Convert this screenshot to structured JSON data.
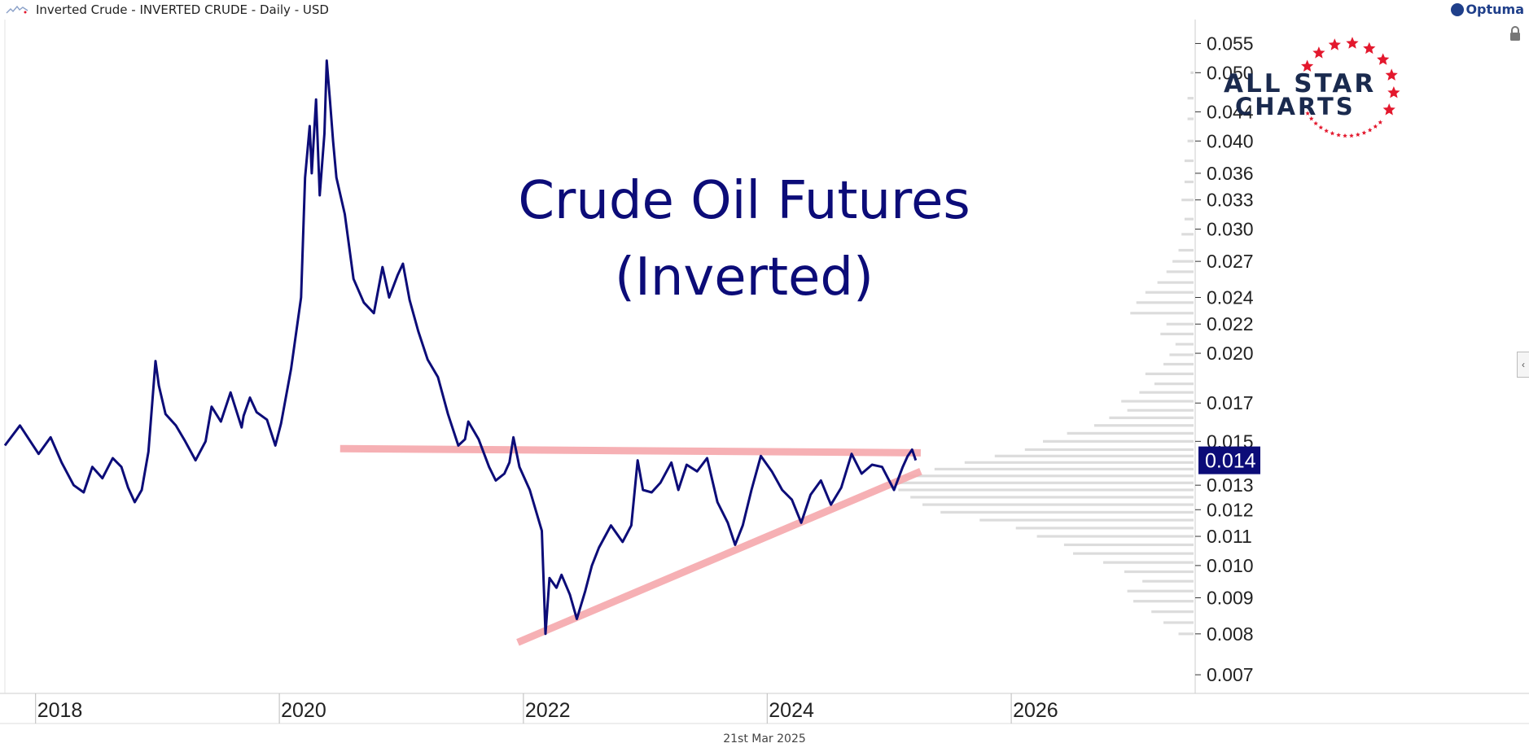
{
  "header": {
    "title": "Inverted Crude - INVERTED CRUDE - Daily - USD",
    "brand": "Optuma"
  },
  "logo": {
    "line1": "ALL STAR",
    "line2": "CHARTS"
  },
  "footer": {
    "date": "21st Mar 2025"
  },
  "colors": {
    "price_line": "#0c0c78",
    "trendline": "#f6a8ac",
    "volume_profile": "#dcdcdc",
    "last_price_badge": "#0c0c78",
    "title_text": "#0c0c78",
    "logo_navy": "#1a2a4e",
    "logo_red": "#e3182d"
  },
  "chart_data": {
    "type": "line",
    "title": "Crude Oil Futures",
    "subtitle": "(Inverted)",
    "y_scale": "log",
    "ylim": [
      0.0068,
      0.057
    ],
    "x_range": [
      "2017-10-01",
      "2027-07-01"
    ],
    "x_tick_labels": [
      "2018",
      "2020",
      "2022",
      "2024",
      "2026"
    ],
    "x_ticks": [
      "2018-01-01",
      "2020-01-01",
      "2022-01-01",
      "2024-01-01",
      "2026-01-01"
    ],
    "y_tick_labels": [
      "0.055",
      "0.050",
      "0.044",
      "0.040",
      "0.036",
      "0.033",
      "0.030",
      "0.027",
      "0.024",
      "0.022",
      "0.020",
      "0.017",
      "0.015",
      "0.013",
      "0.012",
      "0.011",
      "0.010",
      "0.009",
      "0.008",
      "0.007"
    ],
    "y_ticks": [
      0.055,
      0.05,
      0.044,
      0.04,
      0.036,
      0.033,
      0.03,
      0.027,
      0.024,
      0.022,
      0.02,
      0.017,
      0.015,
      0.013,
      0.012,
      0.011,
      0.01,
      0.009,
      0.008,
      0.007
    ],
    "last_value_label": "0.014",
    "last_value": 0.0141,
    "series": [
      {
        "values": [
          [
            "2017-10-01",
            0.0148
          ],
          [
            "2017-11-15",
            0.0158
          ],
          [
            "2018-01-10",
            0.0144
          ],
          [
            "2018-02-15",
            0.0152
          ],
          [
            "2018-03-20",
            0.014
          ],
          [
            "2018-04-25",
            0.013
          ],
          [
            "2018-05-25",
            0.0127
          ],
          [
            "2018-06-20",
            0.0138
          ],
          [
            "2018-07-20",
            0.0133
          ],
          [
            "2018-08-20",
            0.0142
          ],
          [
            "2018-09-15",
            0.0138
          ],
          [
            "2018-10-05",
            0.0129
          ],
          [
            "2018-10-25",
            0.0123
          ],
          [
            "2018-11-15",
            0.0128
          ],
          [
            "2018-12-05",
            0.0145
          ],
          [
            "2018-12-26",
            0.0195
          ],
          [
            "2019-01-05",
            0.018
          ],
          [
            "2019-01-25",
            0.0164
          ],
          [
            "2019-02-25",
            0.0158
          ],
          [
            "2019-03-25",
            0.015
          ],
          [
            "2019-04-25",
            0.0141
          ],
          [
            "2019-05-25",
            0.015
          ],
          [
            "2019-06-12",
            0.0168
          ],
          [
            "2019-07-10",
            0.016
          ],
          [
            "2019-08-08",
            0.0176
          ],
          [
            "2019-09-10",
            0.0157
          ],
          [
            "2019-09-16",
            0.0163
          ],
          [
            "2019-10-05",
            0.0173
          ],
          [
            "2019-10-25",
            0.0165
          ],
          [
            "2019-11-25",
            0.0161
          ],
          [
            "2019-12-20",
            0.0148
          ],
          [
            "2020-01-06",
            0.0159
          ],
          [
            "2020-02-05",
            0.019
          ],
          [
            "2020-03-06",
            0.024
          ],
          [
            "2020-03-18",
            0.0355
          ],
          [
            "2020-04-01",
            0.042
          ],
          [
            "2020-04-07",
            0.036
          ],
          [
            "2020-04-20",
            0.0458
          ],
          [
            "2020-05-01",
            0.0335
          ],
          [
            "2020-05-15",
            0.041
          ],
          [
            "2020-05-22",
            0.052
          ],
          [
            "2020-06-01",
            0.0455
          ],
          [
            "2020-06-10",
            0.04
          ],
          [
            "2020-06-20",
            0.0355
          ],
          [
            "2020-07-15",
            0.0315
          ],
          [
            "2020-08-10",
            0.0255
          ],
          [
            "2020-09-10",
            0.0236
          ],
          [
            "2020-10-10",
            0.0228
          ],
          [
            "2020-11-05",
            0.0265
          ],
          [
            "2020-11-25",
            0.024
          ],
          [
            "2020-12-20",
            0.0258
          ],
          [
            "2021-01-05",
            0.0268
          ],
          [
            "2021-01-25",
            0.0238
          ],
          [
            "2021-02-20",
            0.0215
          ],
          [
            "2021-03-20",
            0.0196
          ],
          [
            "2021-04-20",
            0.0185
          ],
          [
            "2021-05-20",
            0.0164
          ],
          [
            "2021-06-20",
            0.0148
          ],
          [
            "2021-07-10",
            0.0151
          ],
          [
            "2021-07-20",
            0.016
          ],
          [
            "2021-08-20",
            0.0151
          ],
          [
            "2021-09-20",
            0.0138
          ],
          [
            "2021-10-10",
            0.0132
          ],
          [
            "2021-11-05",
            0.0135
          ],
          [
            "2021-11-20",
            0.014
          ],
          [
            "2021-12-02",
            0.0152
          ],
          [
            "2021-12-20",
            0.0138
          ],
          [
            "2022-01-20",
            0.0128
          ],
          [
            "2022-02-25",
            0.0112
          ],
          [
            "2022-03-08",
            0.008
          ],
          [
            "2022-03-20",
            0.0096
          ],
          [
            "2022-04-10",
            0.0093
          ],
          [
            "2022-04-25",
            0.0097
          ],
          [
            "2022-05-20",
            0.0091
          ],
          [
            "2022-06-10",
            0.0084
          ],
          [
            "2022-07-05",
            0.0092
          ],
          [
            "2022-07-25",
            0.01
          ],
          [
            "2022-08-15",
            0.0106
          ],
          [
            "2022-09-20",
            0.0114
          ],
          [
            "2022-10-25",
            0.0108
          ],
          [
            "2022-11-20",
            0.0114
          ],
          [
            "2022-12-09",
            0.0141
          ],
          [
            "2022-12-25",
            0.0128
          ],
          [
            "2023-01-20",
            0.0127
          ],
          [
            "2023-02-15",
            0.0131
          ],
          [
            "2023-03-20",
            0.014
          ],
          [
            "2023-04-10",
            0.0128
          ],
          [
            "2023-05-05",
            0.0139
          ],
          [
            "2023-06-05",
            0.0136
          ],
          [
            "2023-07-05",
            0.0142
          ],
          [
            "2023-08-05",
            0.0123
          ],
          [
            "2023-09-05",
            0.0115
          ],
          [
            "2023-09-27",
            0.0107
          ],
          [
            "2023-10-20",
            0.0114
          ],
          [
            "2023-11-15",
            0.0128
          ],
          [
            "2023-12-13",
            0.0143
          ],
          [
            "2024-01-15",
            0.0136
          ],
          [
            "2024-02-15",
            0.0128
          ],
          [
            "2024-03-15",
            0.0124
          ],
          [
            "2024-04-12",
            0.0115
          ],
          [
            "2024-05-10",
            0.0126
          ],
          [
            "2024-06-10",
            0.0132
          ],
          [
            "2024-07-10",
            0.0122
          ],
          [
            "2024-08-10",
            0.0129
          ],
          [
            "2024-09-10",
            0.0144
          ],
          [
            "2024-10-10",
            0.0135
          ],
          [
            "2024-11-10",
            0.0139
          ],
          [
            "2024-12-10",
            0.0138
          ],
          [
            "2025-01-15",
            0.0128
          ],
          [
            "2025-02-10",
            0.0138
          ],
          [
            "2025-02-25",
            0.0143
          ],
          [
            "2025-03-10",
            0.0146
          ],
          [
            "2025-03-21",
            0.0141
          ]
        ]
      }
    ],
    "trendlines": [
      {
        "from": [
          "2020-07-01",
          0.01465
        ],
        "to": [
          "2025-04-05",
          0.01445
        ]
      },
      {
        "from": [
          "2021-12-15",
          0.00778
        ],
        "to": [
          "2025-04-05",
          0.0136
        ]
      }
    ],
    "volume_profile": [
      [
        0.008,
        0.05
      ],
      [
        0.0083,
        0.1
      ],
      [
        0.0086,
        0.14
      ],
      [
        0.0089,
        0.2
      ],
      [
        0.0092,
        0.22
      ],
      [
        0.0095,
        0.17
      ],
      [
        0.0098,
        0.23
      ],
      [
        0.0101,
        0.3
      ],
      [
        0.0104,
        0.4
      ],
      [
        0.0107,
        0.43
      ],
      [
        0.011,
        0.52
      ],
      [
        0.0113,
        0.59
      ],
      [
        0.0116,
        0.71
      ],
      [
        0.0119,
        0.84
      ],
      [
        0.0122,
        0.9
      ],
      [
        0.0125,
        0.94
      ],
      [
        0.0128,
        0.98
      ],
      [
        0.0131,
        1.0
      ],
      [
        0.0134,
        0.96
      ],
      [
        0.0137,
        0.86
      ],
      [
        0.014,
        0.76
      ],
      [
        0.0143,
        0.66
      ],
      [
        0.0146,
        0.56
      ],
      [
        0.015,
        0.5
      ],
      [
        0.0154,
        0.42
      ],
      [
        0.0158,
        0.33
      ],
      [
        0.0162,
        0.28
      ],
      [
        0.0166,
        0.22
      ],
      [
        0.0171,
        0.24
      ],
      [
        0.0176,
        0.18
      ],
      [
        0.0181,
        0.13
      ],
      [
        0.0187,
        0.16
      ],
      [
        0.0193,
        0.1
      ],
      [
        0.0199,
        0.08
      ],
      [
        0.0206,
        0.06
      ],
      [
        0.0213,
        0.11
      ],
      [
        0.022,
        0.09
      ],
      [
        0.0228,
        0.21
      ],
      [
        0.0236,
        0.19
      ],
      [
        0.0244,
        0.16
      ],
      [
        0.0252,
        0.12
      ],
      [
        0.0261,
        0.09
      ],
      [
        0.027,
        0.07
      ],
      [
        0.028,
        0.05
      ],
      [
        0.0295,
        0.04
      ],
      [
        0.031,
        0.03
      ],
      [
        0.033,
        0.04
      ],
      [
        0.035,
        0.03
      ],
      [
        0.0375,
        0.03
      ],
      [
        0.04,
        0.02
      ],
      [
        0.043,
        0.02
      ],
      [
        0.046,
        0.02
      ],
      [
        0.05,
        0.01
      ]
    ]
  }
}
